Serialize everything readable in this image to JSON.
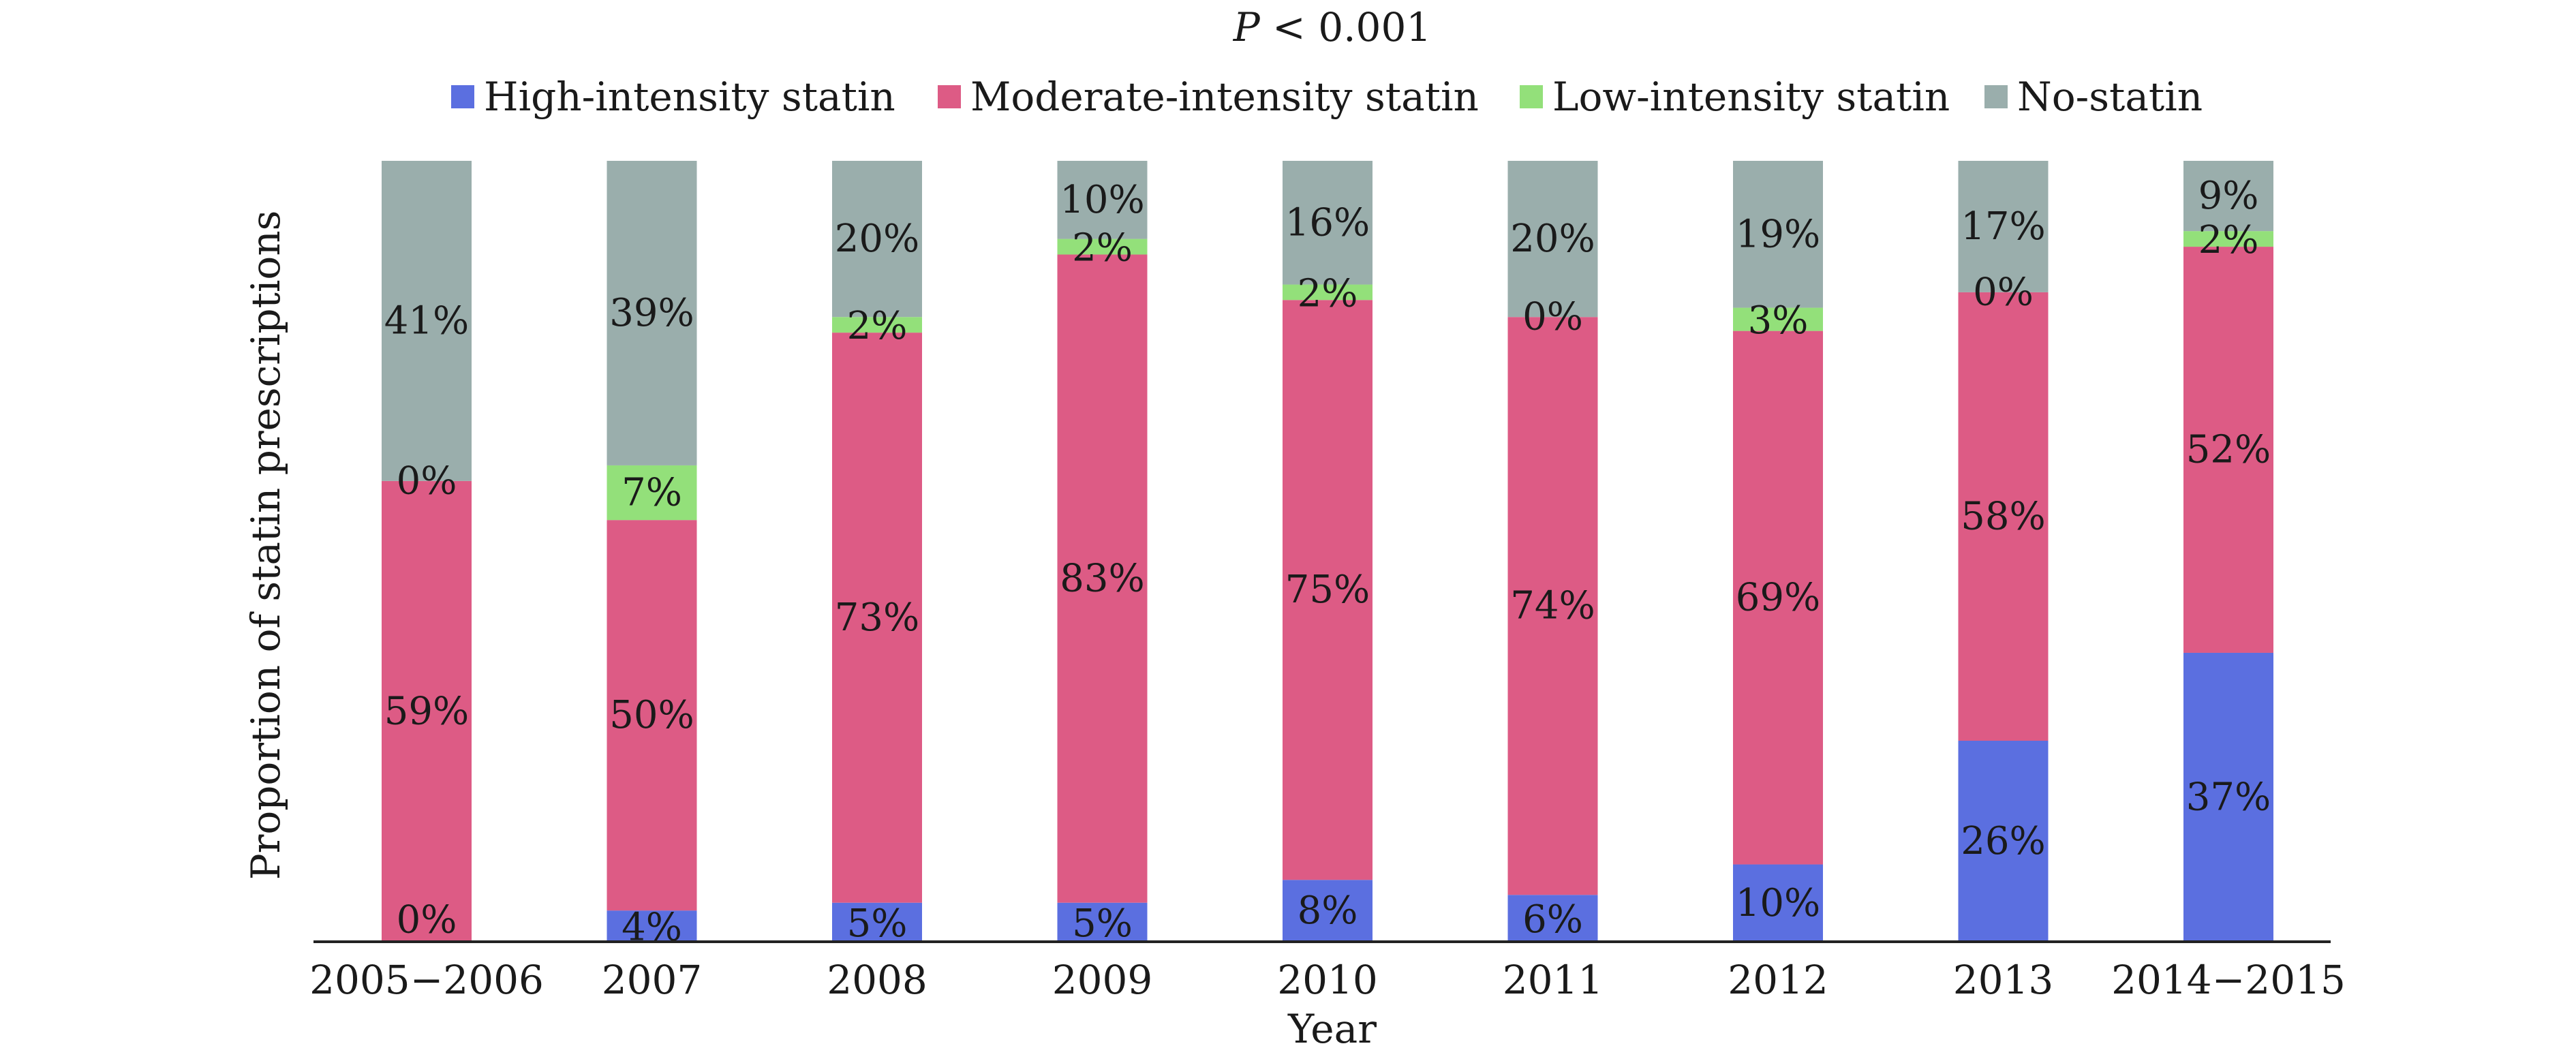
{
  "chart_data": {
    "type": "bar",
    "stacked": true,
    "percent_stacked": true,
    "annotation": "P < 0.001",
    "annotation_italic_part": "P",
    "annotation_rest": " < 0.001",
    "xlabel": "Year",
    "ylabel": "Proportion of statin prescriptions",
    "categories": [
      "2005−2006",
      "2007",
      "2008",
      "2009",
      "2010",
      "2011",
      "2012",
      "2013",
      "2014−2015"
    ],
    "legend_position": "top",
    "grid": false,
    "ylim": [
      0,
      100
    ],
    "series": [
      {
        "name": "High-intensity statin",
        "color": "#5b6fe0",
        "values": [
          0,
          4,
          5,
          5,
          8,
          6,
          10,
          26,
          37
        ],
        "labels": [
          "0%",
          "4%",
          "5%",
          "5%",
          "8%",
          "6%",
          "10%",
          "26%",
          "37%"
        ]
      },
      {
        "name": "Moderate-intensity statin",
        "color": "#dd5b85",
        "values": [
          59,
          50,
          73,
          83,
          75,
          74,
          69,
          58,
          52
        ],
        "labels": [
          "59%",
          "50%",
          "73%",
          "83%",
          "75%",
          "74%",
          "69%",
          "58%",
          "52%"
        ]
      },
      {
        "name": "Low-intensity statin",
        "color": "#93e07a",
        "values": [
          0,
          7,
          2,
          2,
          2,
          0,
          3,
          0,
          2
        ],
        "labels": [
          "0%",
          "7%",
          "2%",
          "2%",
          "2%",
          "0%",
          "3%",
          "0%",
          "2%"
        ]
      },
      {
        "name": "No-statin",
        "color": "#9aaeac",
        "values": [
          41,
          39,
          20,
          10,
          16,
          20,
          19,
          17,
          9
        ],
        "labels": [
          "41%",
          "39%",
          "20%",
          "10%",
          "16%",
          "20%",
          "19%",
          "17%",
          "9%"
        ]
      }
    ]
  }
}
